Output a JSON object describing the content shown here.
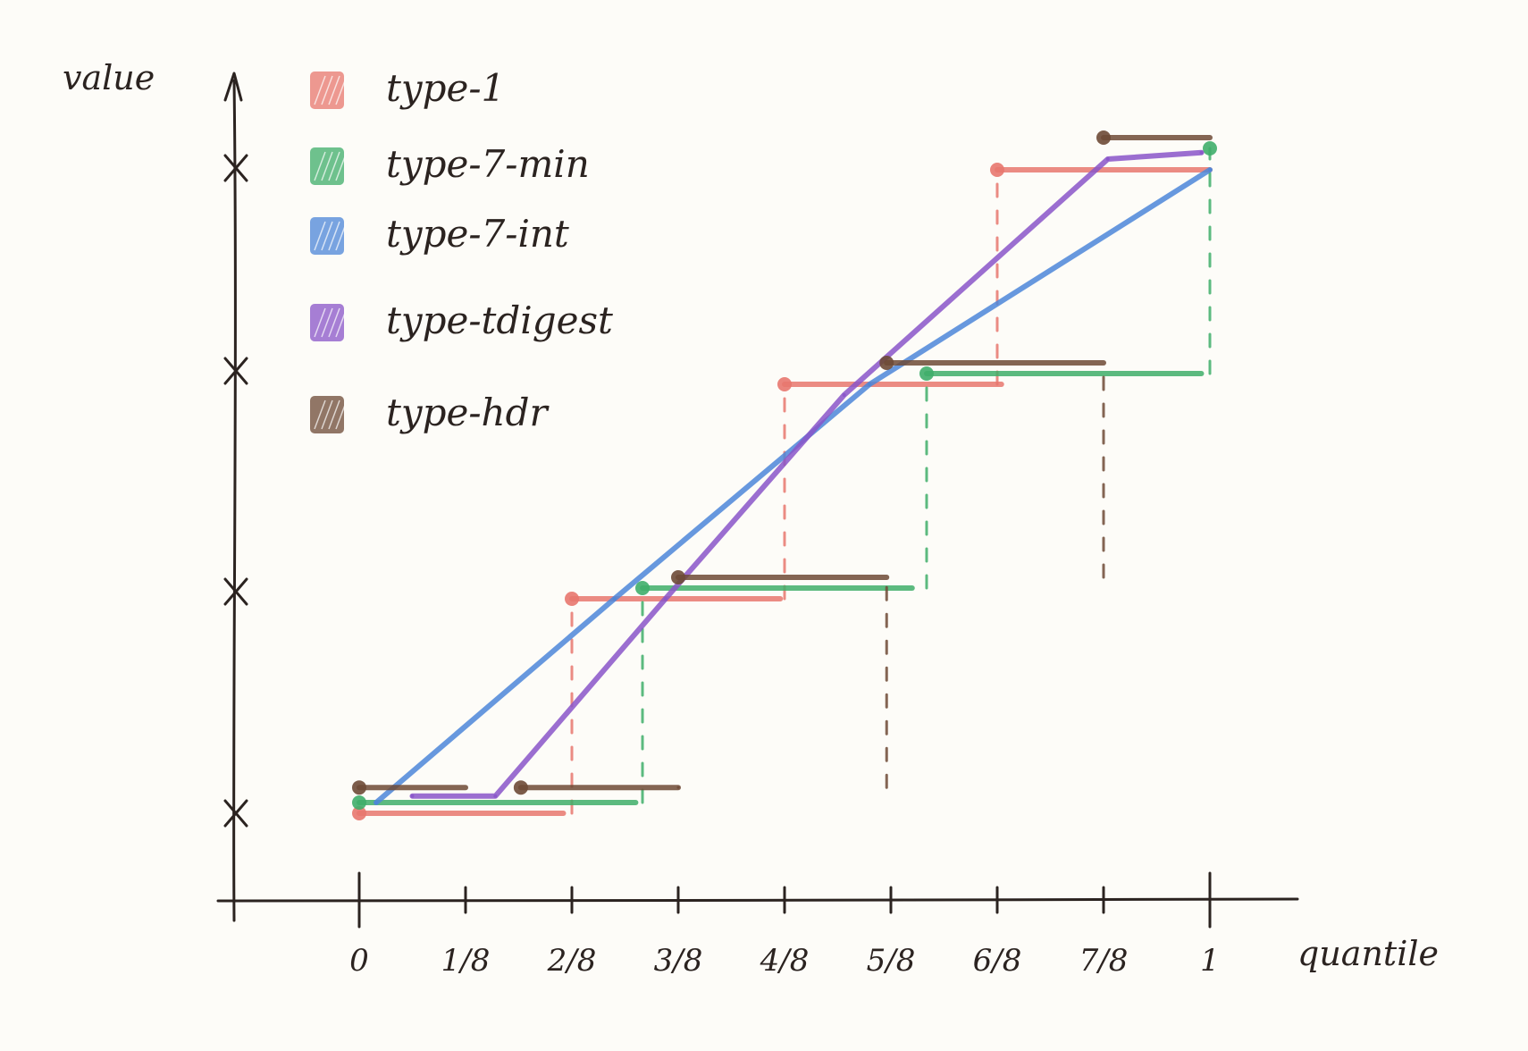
{
  "chart_data": {
    "type": "line",
    "title": "",
    "xlabel": "quantile",
    "ylabel": "value",
    "xlim": [
      0,
      1
    ],
    "x_ticks": [
      "0",
      "1/8",
      "2/8",
      "3/8",
      "4/8",
      "5/8",
      "6/8",
      "7/8",
      "1"
    ],
    "y_ticks": [
      1,
      2,
      3,
      4
    ],
    "grid": false,
    "legend_position": "top-left",
    "series": [
      {
        "name": "type-1",
        "color": "#e8776e",
        "style": "step",
        "steps": [
          {
            "from": 0,
            "to": 0.24,
            "value": 1.0
          },
          {
            "from": 0.25,
            "to": 0.495,
            "value": 2.0
          },
          {
            "from": 0.5,
            "to": 0.755,
            "value": 3.0
          },
          {
            "from": 0.75,
            "to": 1.0,
            "value": 4.0
          }
        ],
        "dashed_risers_at": [
          0.25,
          0.5,
          0.75
        ]
      },
      {
        "name": "type-7-min",
        "color": "#3fae6a",
        "style": "step",
        "steps": [
          {
            "from": 0,
            "to": 0.325,
            "value": 1.05
          },
          {
            "from": 0.333,
            "to": 0.65,
            "value": 2.05
          },
          {
            "from": 0.667,
            "to": 0.99,
            "value": 3.05
          },
          {
            "from": 1.0,
            "to": 1.0,
            "value": 4.1
          }
        ],
        "dashed_risers_at": [
          0.333,
          0.667,
          1.0
        ]
      },
      {
        "name": "type-7-int",
        "color": "#4c86d9",
        "style": "line",
        "points": [
          [
            0.02,
            1.05
          ],
          [
            0.3,
            2.0
          ],
          [
            0.6,
            3.0
          ],
          [
            1.0,
            4.0
          ]
        ]
      },
      {
        "name": "type-tdigest",
        "color": "#8a55c9",
        "style": "line",
        "points": [
          [
            0.0625,
            1.08
          ],
          [
            0.16,
            1.08
          ],
          [
            0.36,
            2.0
          ],
          [
            0.57,
            2.95
          ],
          [
            0.88,
            4.05
          ],
          [
            0.99,
            4.08
          ]
        ]
      },
      {
        "name": "type-hdr",
        "color": "#6e4a36",
        "style": "step",
        "steps": [
          {
            "from": 0,
            "to": 0.125,
            "value": 1.12
          },
          {
            "from": 0.19,
            "to": 0.375,
            "value": 1.12
          },
          {
            "from": 0.375,
            "to": 0.62,
            "value": 2.1
          },
          {
            "from": 0.62,
            "to": 0.875,
            "value": 3.1
          },
          {
            "from": 0.875,
            "to": 1.0,
            "value": 4.15
          }
        ],
        "dashed_risers_at": [
          0.375,
          0.62,
          0.875
        ]
      }
    ]
  }
}
